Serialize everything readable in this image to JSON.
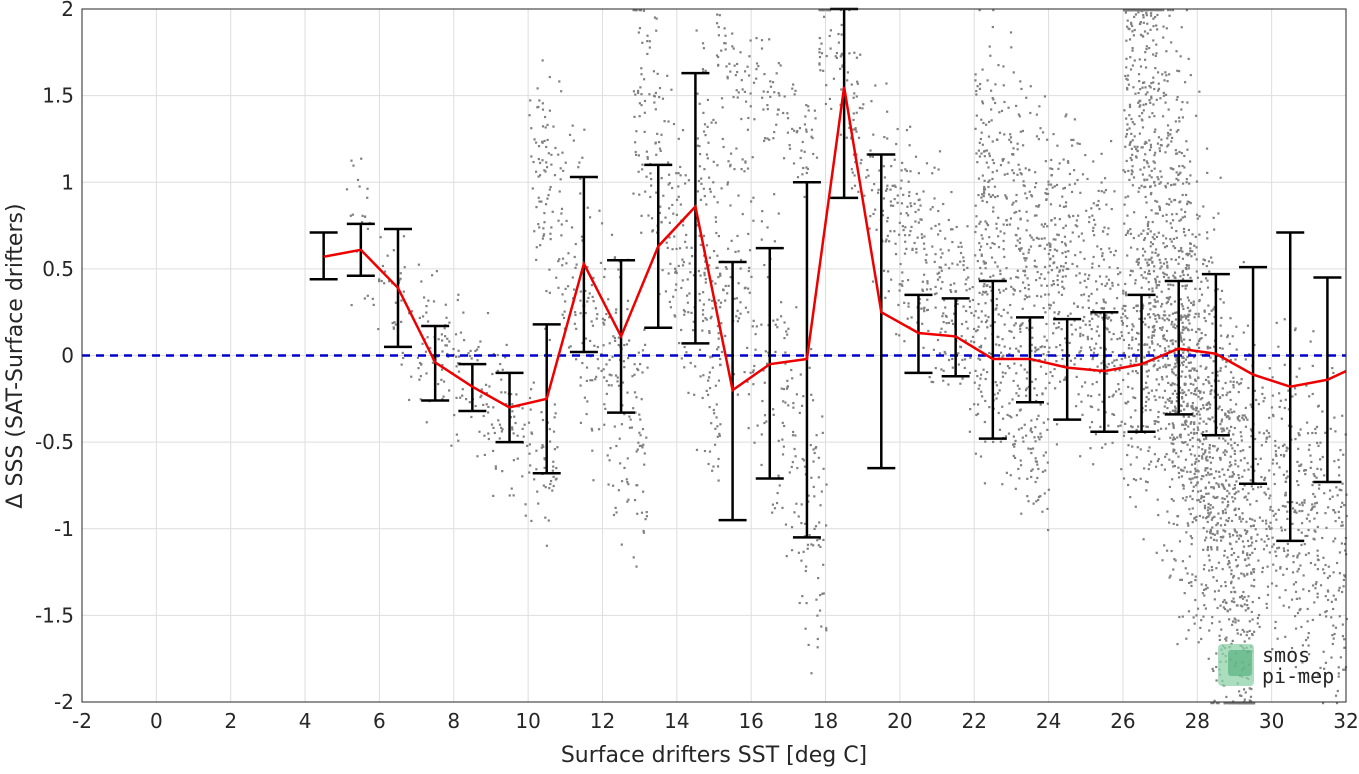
{
  "chart_data": {
    "type": "scatter",
    "xlabel": "Surface drifters SST [deg C]",
    "ylabel": "Δ SSS (SAT-Surface drifters)",
    "xlim": [
      -2,
      32
    ],
    "ylim": [
      -2,
      2
    ],
    "xticks": [
      "-2",
      "0",
      "2",
      "4",
      "6",
      "8",
      "10",
      "12",
      "14",
      "16",
      "18",
      "20",
      "22",
      "24",
      "26",
      "28",
      "30",
      "32"
    ],
    "yticks": [
      "-2",
      "-1.5",
      "-1",
      "-0.5",
      "0",
      "0.5",
      "1",
      "1.5",
      "2"
    ],
    "grid": true,
    "reference_line": {
      "y": 0,
      "color": "#0000cc",
      "style": "dashed"
    },
    "series": [
      {
        "kind": "binned-mean",
        "color": "#ee0000",
        "x": [
          4.5,
          5.5,
          6.5,
          7.5,
          8.5,
          9.5,
          10.5,
          11.5,
          12.5,
          13.5,
          14.5,
          15.5,
          16.5,
          17.5,
          18.5,
          19.5,
          20.5,
          21.5,
          22.5,
          23.5,
          24.5,
          25.5,
          26.5,
          27.5,
          28.5,
          29.5,
          30.5,
          31.5,
          32
        ],
        "y": [
          0.57,
          0.61,
          0.39,
          -0.04,
          -0.18,
          -0.3,
          -0.25,
          0.53,
          0.11,
          0.63,
          0.86,
          -0.2,
          -0.05,
          -0.02,
          1.55,
          0.25,
          0.13,
          0.11,
          -0.02,
          -0.02,
          -0.07,
          -0.09,
          -0.05,
          0.04,
          0.01,
          -0.11,
          -0.18,
          -0.14,
          -0.09
        ]
      },
      {
        "kind": "error-bars",
        "color": "#000000",
        "x": [
          4.5,
          5.5,
          6.5,
          7.5,
          8.5,
          9.5,
          10.5,
          11.5,
          12.5,
          13.5,
          14.5,
          15.5,
          16.5,
          17.5,
          18.5,
          19.5,
          20.5,
          21.5,
          22.5,
          23.5,
          24.5,
          25.5,
          26.5,
          27.5,
          28.5,
          29.5,
          30.5,
          31.5
        ],
        "low": [
          0.44,
          0.46,
          0.05,
          -0.26,
          -0.32,
          -0.5,
          -0.68,
          0.02,
          -0.33,
          0.16,
          0.07,
          -0.95,
          -0.71,
          -1.05,
          0.91,
          -0.65,
          -0.1,
          -0.12,
          -0.48,
          -0.27,
          -0.37,
          -0.44,
          -0.44,
          -0.34,
          -0.46,
          -0.74,
          -1.07,
          -0.73
        ],
        "high": [
          0.71,
          0.76,
          0.73,
          0.17,
          -0.05,
          -0.1,
          0.18,
          1.03,
          0.55,
          1.1,
          1.63,
          0.54,
          0.62,
          1.0,
          2.0,
          1.16,
          0.35,
          0.33,
          0.43,
          0.22,
          0.21,
          0.25,
          0.35,
          0.43,
          0.47,
          0.51,
          0.71,
          0.45
        ]
      },
      {
        "kind": "raw-points",
        "color": "#808080",
        "clusters": [
          {
            "x": [
              5.0,
              7.3
            ],
            "y": [
              0.9,
              -0.1
            ],
            "n": 60
          },
          {
            "x": [
              7.0,
              10.8
            ],
            "y": [
              0.2,
              -0.7
            ],
            "n": 220
          },
          {
            "x": [
              10.0,
              13.2
            ],
            "y": [
              1.2,
              -0.6
            ],
            "n": 320
          },
          {
            "x": [
              12.8,
              15.2
            ],
            "y": [
              1.6,
              -0.3
            ],
            "n": 260
          },
          {
            "x": [
              14.5,
              18.0
            ],
            "y": [
              1.3,
              -1.1
            ],
            "n": 320
          },
          {
            "x": [
              15.0,
              17.8
            ],
            "y": [
              1.8,
              1.2
            ],
            "n": 120
          },
          {
            "x": [
              17.8,
              19.5
            ],
            "y": [
              2.0,
              0.9
            ],
            "n": 120
          },
          {
            "x": [
              19.5,
              24.0
            ],
            "y": [
              0.9,
              -0.5
            ],
            "n": 500
          },
          {
            "x": [
              22.0,
              32.0
            ],
            "y": [
              1.0,
              -1.2
            ],
            "n": 1800
          },
          {
            "x": [
              26.0,
              29.5
            ],
            "y": [
              2.0,
              -2.0
            ],
            "n": 1400
          }
        ]
      }
    ],
    "watermark": "smos pi-mep"
  }
}
